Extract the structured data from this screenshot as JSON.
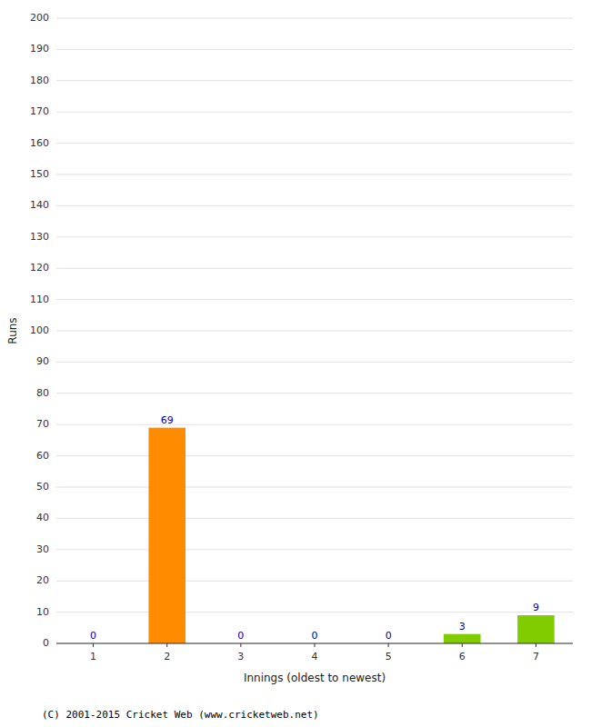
{
  "chart_data": {
    "type": "bar",
    "categories": [
      "1",
      "2",
      "3",
      "4",
      "5",
      "6",
      "7"
    ],
    "values": [
      0,
      69,
      0,
      0,
      0,
      3,
      9
    ],
    "colors": [
      "#ff8c00",
      "#ff8c00",
      "#ff8c00",
      "#ff8c00",
      "#ff8c00",
      "#80cc00",
      "#80cc00"
    ],
    "x_label": "Innings (oldest to newest)",
    "y_label": "Runs",
    "ylim": [
      0,
      200
    ],
    "yticks": [
      0,
      10,
      20,
      30,
      40,
      50,
      60,
      70,
      80,
      90,
      100,
      110,
      120,
      130,
      140,
      150,
      160,
      170,
      180,
      190,
      200
    ],
    "grid": true,
    "data_labels": true,
    "annotations": [
      "(C) 2001-2015 Cricket Web (www.cricketweb.net)"
    ]
  }
}
